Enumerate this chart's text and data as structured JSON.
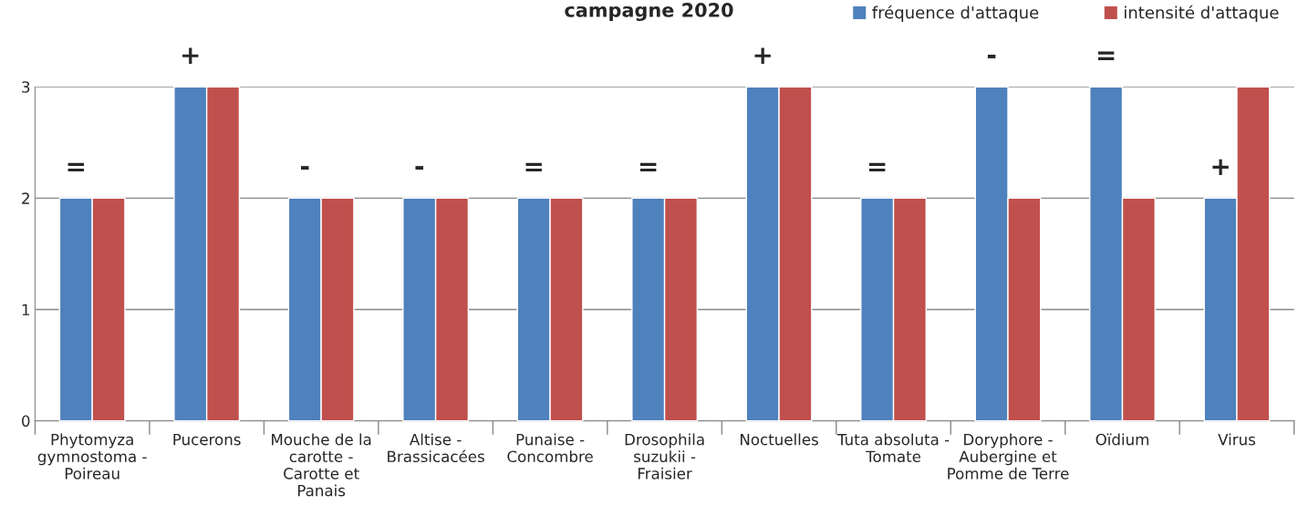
{
  "chart_data": {
    "type": "bar",
    "title": "campagne 2020",
    "categories": [
      "Phytomyza gymnostoma - Poireau",
      "Pucerons",
      "Mouche de la carotte - Carotte et Panais",
      "Altise - Brassicacées",
      "Punaise - Concombre",
      "Drosophila suzukii - Fraisier",
      "Noctuelles",
      "Tuta absoluta - Tomate",
      "Doryphore - Aubergine et Pomme de Terre",
      "Oïdium",
      "Virus"
    ],
    "series": [
      {
        "name": "fréquence d'attaque",
        "color": "#4f81bd",
        "values": [
          2,
          3,
          2,
          2,
          2,
          2,
          3,
          2,
          3,
          3,
          2
        ]
      },
      {
        "name": "intensité d'attaque",
        "color": "#c0504d",
        "values": [
          2,
          3,
          2,
          2,
          2,
          2,
          3,
          2,
          2,
          2,
          3
        ]
      }
    ],
    "ylim": [
      0,
      3
    ],
    "yticks": [
      0,
      1,
      2,
      3
    ],
    "grid": "y",
    "legend": "top right",
    "annotations": [
      {
        "text": "=",
        "x": "Phytomyza gymnostoma - Poireau",
        "y": 2
      },
      {
        "text": "+",
        "x": "Pucerons",
        "y": 3
      },
      {
        "text": "-",
        "x": "Mouche de la carotte - Carotte et Panais",
        "y": 2
      },
      {
        "text": "-",
        "x": "Altise - Brassicacées",
        "y": 2
      },
      {
        "text": "=",
        "x": "Punaise - Concombre",
        "y": 2
      },
      {
        "text": "=",
        "x": "Drosophila suzukii - Fraisier",
        "y": 2
      },
      {
        "text": "+",
        "x": "Noctuelles",
        "y": 3
      },
      {
        "text": "=",
        "x": "Tuta absoluta - Tomate",
        "y": 2
      },
      {
        "text": "-",
        "x": "Doryphore - Aubergine et Pomme de Terre",
        "y": 3
      },
      {
        "text": "=",
        "x": "Oïdium",
        "y": 3
      },
      {
        "text": "+",
        "x": "Virus",
        "y": 2
      }
    ]
  }
}
